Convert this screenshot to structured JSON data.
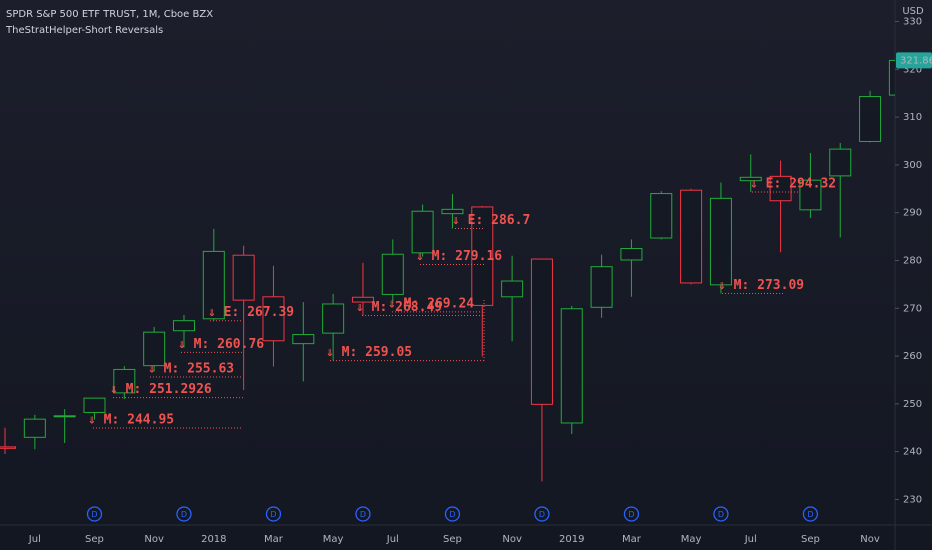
{
  "chart_data": {
    "type": "candlestick",
    "title": "SPDR S&P 500 ETF TRUST, 1M, Cboe BZX",
    "subtitle": "TheStratHelper-Short Reversals",
    "currency": "USD",
    "categories": [
      null,
      "Jul",
      null,
      "Sep",
      null,
      "Nov",
      null,
      "2018",
      null,
      "Mar",
      null,
      "May",
      null,
      "Jul",
      null,
      "Sep",
      null,
      "Nov",
      null,
      "2019",
      null,
      "Mar",
      null,
      "May",
      null,
      "Jul",
      null,
      "Sep",
      null,
      "Nov",
      null
    ],
    "open": [
      241.0,
      243.0,
      247.5,
      248.2,
      252.3,
      258.0,
      265.3,
      267.8,
      281.1,
      272.4,
      262.6,
      264.8,
      272.3,
      272.9,
      281.6,
      289.8,
      291.2,
      272.4,
      280.3,
      246.0,
      270.2,
      280.1,
      284.7,
      294.7,
      274.9,
      296.7,
      297.6,
      290.6,
      297.7,
      304.9,
      314.6
    ],
    "high": [
      245.0,
      247.7,
      248.9,
      251.3,
      257.9,
      266.1,
      268.6,
      286.6,
      283.1,
      278.9,
      271.3,
      273.0,
      279.5,
      284.4,
      291.7,
      293.9,
      291.4,
      281.0,
      280.4,
      270.5,
      281.2,
      284.4,
      294.5,
      295.0,
      296.3,
      302.2,
      300.9,
      302.5,
      304.6,
      315.5,
      322.1
    ],
    "low": [
      239.5,
      240.5,
      241.8,
      246.7,
      251.0,
      256.8,
      261.8,
      267.4,
      252.9,
      257.8,
      254.7,
      259.1,
      268.5,
      271.0,
      280.8,
      286.7,
      259.9,
      263.1,
      233.8,
      243.7,
      268.0,
      272.4,
      284.4,
      275.0,
      273.1,
      294.3,
      281.7,
      288.9,
      284.8,
      304.7,
      311.4
    ],
    "close": [
      240.7,
      246.8,
      247.5,
      251.2,
      257.2,
      265.0,
      267.4,
      281.9,
      271.7,
      263.2,
      264.5,
      270.9,
      271.3,
      281.3,
      290.3,
      290.7,
      270.6,
      275.7,
      249.9,
      269.9,
      278.7,
      282.5,
      294.0,
      275.3,
      293.0,
      297.4,
      292.5,
      296.8,
      303.3,
      314.3,
      321.86
    ],
    "up_color": "#22ab3c",
    "down_color": "#f23645",
    "ylim": [
      225.7,
      334.5
    ],
    "yticks": [
      230,
      240,
      250,
      260,
      270,
      280,
      290,
      300,
      310,
      320,
      330
    ],
    "dividend_marker": "D",
    "annotations": [
      {
        "label": "⇓ M: 244.95",
        "level": 244.95
      },
      {
        "label": "⇓ M: 251.2926",
        "level": 251.2926
      },
      {
        "label": "⇓ M: 255.63",
        "level": 255.63
      },
      {
        "label": "⇓ M: 260.76",
        "level": 260.76
      },
      {
        "label": "⇓ E: 267.39",
        "level": 267.39
      },
      {
        "label": "⇓ M: 259.05",
        "level": 259.05
      },
      {
        "label": "⇓ M: 268.49",
        "level": 268.49
      },
      {
        "label": "⇓ M: 269.24",
        "level": 269.24
      },
      {
        "label": "⇓ M: 279.16",
        "level": 279.16
      },
      {
        "label": "⇓ E: 286.7",
        "level": 286.7
      },
      {
        "label": "⇓ M: 273.09",
        "level": 273.09
      },
      {
        "label": "⇓ E: 294.32",
        "level": 294.32
      }
    ],
    "annotation_color": "#ef5350",
    "last_price_color": "#26a69a"
  }
}
